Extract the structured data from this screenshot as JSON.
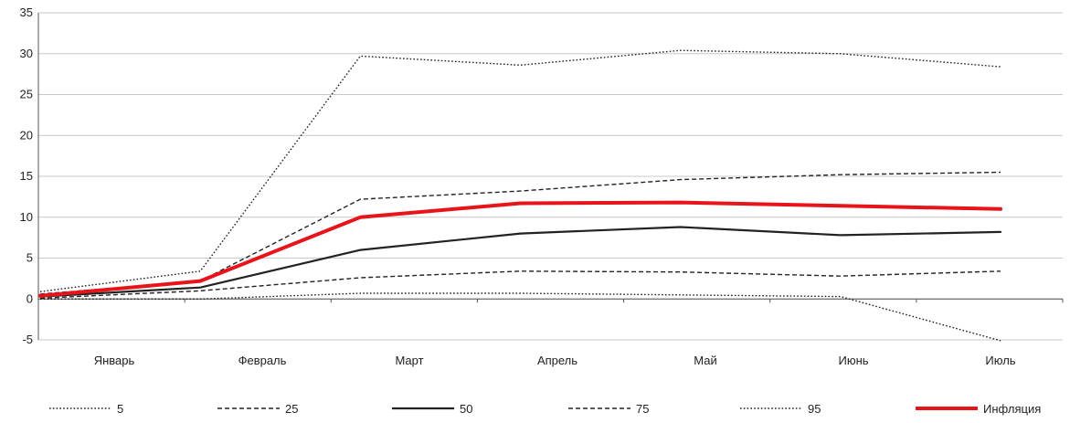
{
  "chart_data": {
    "type": "line",
    "categories": [
      "Январь",
      "Февраль",
      "Март",
      "Апрель",
      "Май",
      "Июнь",
      "Июль"
    ],
    "ylim": [
      -5,
      35
    ],
    "yticks": [
      "-5",
      "0",
      "5",
      "10",
      "15",
      "20",
      "25",
      "30",
      "35"
    ],
    "grid": true,
    "legend_position": "bottom",
    "series": [
      {
        "name": "5",
        "style": "dotted",
        "color": "#222222",
        "values": [
          0.0,
          0.0,
          0.7,
          0.7,
          0.5,
          0.3,
          -5.1
        ]
      },
      {
        "name": "25",
        "style": "dashed",
        "color": "#222222",
        "values": [
          0.1,
          1.0,
          2.6,
          3.4,
          3.3,
          2.8,
          3.4
        ]
      },
      {
        "name": "50",
        "style": "solid",
        "color": "#222222",
        "values": [
          0.3,
          1.4,
          6.0,
          8.0,
          8.8,
          7.8,
          8.2
        ]
      },
      {
        "name": "75",
        "style": "dashed",
        "color": "#222222",
        "values": [
          0.6,
          2.2,
          12.2,
          13.2,
          14.6,
          15.2,
          15.5
        ]
      },
      {
        "name": "95",
        "style": "dotted",
        "color": "#222222",
        "values": [
          0.9,
          3.4,
          29.7,
          28.6,
          30.4,
          30.0,
          28.4
        ]
      },
      {
        "name": "Инфляция",
        "style": "solid",
        "color": "#e8141b",
        "values": [
          0.4,
          2.2,
          10.0,
          11.7,
          11.8,
          11.4,
          11.0
        ]
      }
    ]
  }
}
